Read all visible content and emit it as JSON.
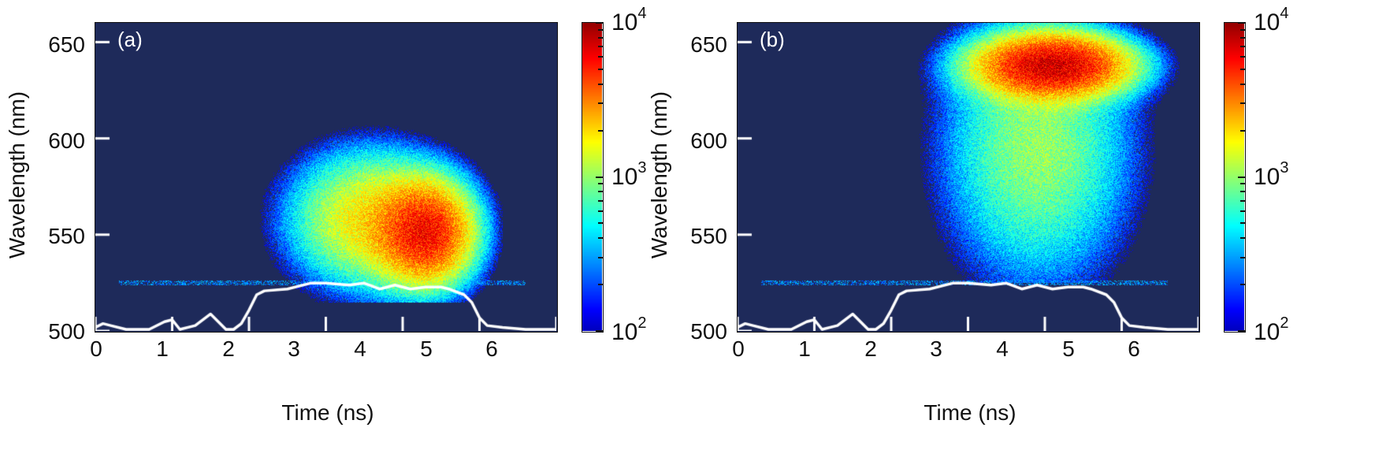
{
  "figure": {
    "panels": [
      {
        "id": "a",
        "label": "(a)"
      },
      {
        "id": "b",
        "label": "(b)"
      }
    ],
    "xlabel": "Time (ns)",
    "ylabel": "Wavelength (nm)",
    "xticks": [
      "0",
      "1",
      "2",
      "3",
      "4",
      "5",
      "6"
    ],
    "yticks": [
      "650",
      "600",
      "550",
      "500"
    ],
    "colorbar": {
      "ticks": [
        {
          "base": "10",
          "exp": "4"
        },
        {
          "base": "10",
          "exp": "3"
        },
        {
          "base": "10",
          "exp": "2"
        }
      ],
      "scale": "log",
      "range": [
        100,
        10000
      ]
    },
    "colors": {
      "background": "#1e2a5a",
      "trace": "#ffffff"
    }
  },
  "chart_data": [
    {
      "type": "heatmap",
      "title": "(a)",
      "xlabel": "Time (ns)",
      "ylabel": "Wavelength (nm)",
      "xlim": [
        0,
        6
      ],
      "ylim": [
        500,
        660
      ],
      "xticks": [
        0,
        1,
        2,
        3,
        4,
        5,
        6
      ],
      "yticks": [
        500,
        550,
        600,
        650
      ],
      "colorbar": {
        "scale": "log",
        "range": [
          100,
          10000
        ],
        "ticks": [
          100,
          1000,
          10000
        ],
        "colormap": "jet"
      },
      "emission_blobs": [
        {
          "t_center": 4.3,
          "wl_center": 551,
          "t_sigma": 0.35,
          "wl_sigma": 15,
          "peak_counts": 5000
        },
        {
          "t_center": 3.6,
          "wl_center": 558,
          "t_sigma": 0.6,
          "wl_sigma": 20,
          "peak_counts": 1800
        }
      ],
      "emission_extent": {
        "t_range": [
          2.2,
          5.0
        ],
        "wl_range": [
          520,
          608
        ]
      },
      "scatter_line_wl": 525,
      "overlay_trace": {
        "description": "laser pulse temporal profile (white line)",
        "t": [
          0,
          0.1,
          0.2,
          0.4,
          0.7,
          0.9,
          1.0,
          1.1,
          1.3,
          1.5,
          1.7,
          1.8,
          1.9,
          2.0,
          2.1,
          2.2,
          2.5,
          2.8,
          3.0,
          3.3,
          3.5,
          3.7,
          3.9,
          4.1,
          4.3,
          4.5,
          4.6,
          4.8,
          4.9,
          5.0,
          5.1,
          5.3,
          5.6,
          6.0
        ],
        "wl": [
          501,
          503,
          502,
          500,
          500,
          504,
          505,
          500,
          502,
          508,
          500,
          500,
          503,
          510,
          518,
          520,
          521,
          524,
          524,
          523,
          524,
          521,
          523,
          521,
          522,
          522,
          521,
          518,
          514,
          506,
          502,
          501,
          500,
          500
        ]
      }
    },
    {
      "type": "heatmap",
      "title": "(b)",
      "xlabel": "Time (ns)",
      "ylabel": "Wavelength (nm)",
      "xlim": [
        0,
        6
      ],
      "ylim": [
        500,
        660
      ],
      "xticks": [
        0,
        1,
        2,
        3,
        4,
        5,
        6
      ],
      "yticks": [
        500,
        550,
        600,
        650
      ],
      "colorbar": {
        "scale": "log",
        "range": [
          100,
          10000
        ],
        "ticks": [
          100,
          1000,
          10000
        ],
        "colormap": "jet"
      },
      "emission_blobs": [
        {
          "t_center": 4.1,
          "wl_center": 638,
          "t_sigma": 0.55,
          "wl_sigma": 9,
          "peak_counts": 7000
        },
        {
          "t_center": 3.9,
          "wl_center": 595,
          "t_sigma": 0.7,
          "wl_sigma": 40,
          "peak_counts": 1000
        }
      ],
      "emission_extent": {
        "t_range": [
          2.0,
          5.5
        ],
        "wl_range": [
          530,
          657
        ]
      },
      "scatter_line_wl": 525,
      "overlay_trace": {
        "description": "laser pulse temporal profile (white line)",
        "t": [
          0,
          0.1,
          0.2,
          0.4,
          0.7,
          0.9,
          1.0,
          1.1,
          1.3,
          1.5,
          1.7,
          1.8,
          1.9,
          2.0,
          2.1,
          2.2,
          2.5,
          2.8,
          3.0,
          3.3,
          3.5,
          3.7,
          3.9,
          4.1,
          4.3,
          4.5,
          4.6,
          4.8,
          4.9,
          5.0,
          5.1,
          5.3,
          5.6,
          6.0
        ],
        "wl": [
          501,
          503,
          502,
          500,
          500,
          504,
          505,
          500,
          502,
          508,
          500,
          500,
          503,
          510,
          518,
          520,
          521,
          524,
          524,
          523,
          524,
          521,
          523,
          521,
          522,
          522,
          521,
          518,
          514,
          506,
          502,
          501,
          500,
          500
        ]
      }
    }
  ]
}
